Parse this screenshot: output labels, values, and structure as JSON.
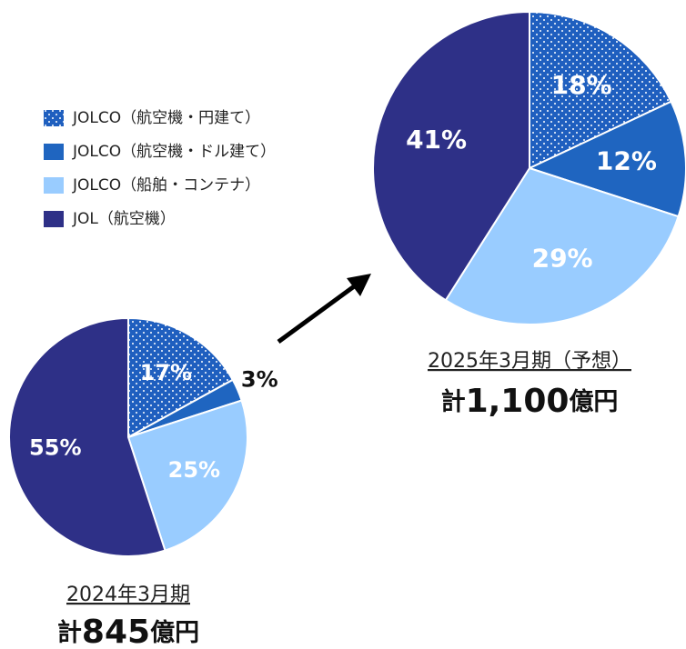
{
  "chart_data": {
    "type": "pie",
    "categories": [
      "JOLCO（航空機・円建て）",
      "JOLCO（航空機・ドル建て）",
      "JOLCO（船舶・コンテナ）",
      "JOL（航空機）"
    ],
    "colors": [
      "#1f5fbf",
      "#1f65c0",
      "#99ccff",
      "#2e3087"
    ],
    "patterns": [
      "dots",
      "solid",
      "solid",
      "solid"
    ],
    "series": [
      {
        "name": "2024年3月期",
        "total": {
          "prefix": "計",
          "value": "845",
          "suffix": "億円"
        },
        "values": [
          17,
          3,
          25,
          55
        ],
        "value_labels": [
          "17%",
          "3%",
          "25%",
          "55%"
        ]
      },
      {
        "name": "2025年3月期（予想）",
        "total": {
          "prefix": "計",
          "value": "1,100",
          "suffix": "億円"
        },
        "values": [
          18,
          12,
          29,
          41
        ],
        "value_labels": [
          "18%",
          "12%",
          "29%",
          "41%"
        ]
      }
    ]
  }
}
